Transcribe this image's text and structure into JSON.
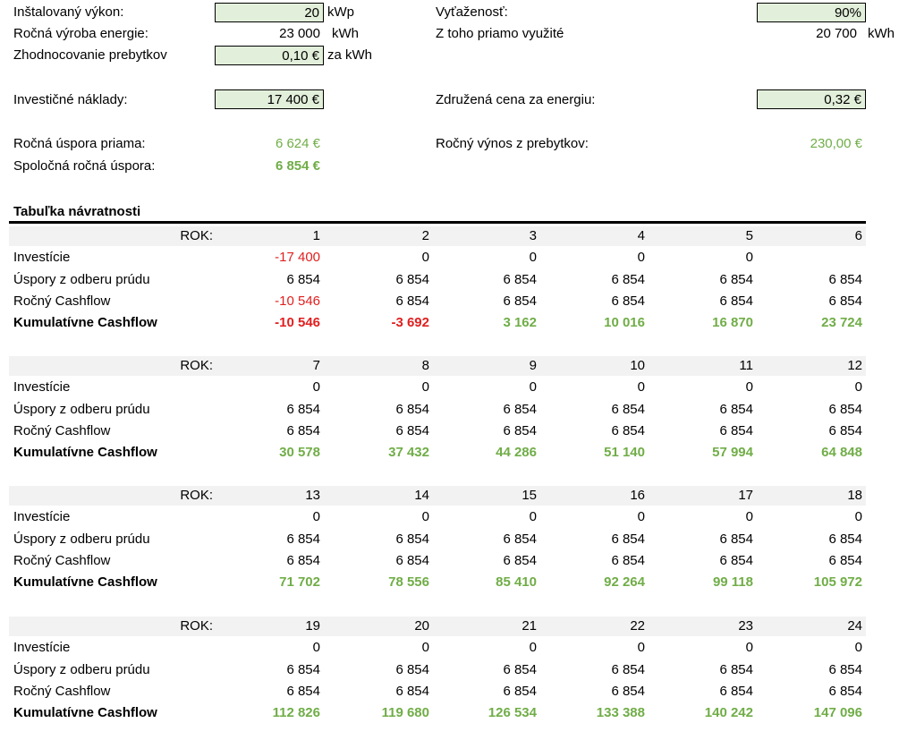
{
  "inputs": {
    "installed_power_label": "Inštalovaný výkon:",
    "installed_power_value": "20",
    "installed_power_unit": "kWp",
    "annual_production_label": "Ročná výroba energie:",
    "annual_production_value": "23 000",
    "annual_production_unit": "kWh",
    "surplus_valuation_label": "Zhodnocovanie prebytkov",
    "surplus_valuation_value": "0,10 €",
    "surplus_valuation_unit": "za kWh",
    "utilization_label": "Vyťaženosť:",
    "utilization_value": "90%",
    "direct_use_label": "Z toho priamo využité",
    "direct_use_value": "20 700",
    "direct_use_unit": "kWh",
    "investment_label": "Investičné náklady:",
    "investment_value": "17 400 €",
    "combined_price_label": "Združená cena za energiu:",
    "combined_price_value": "0,32 €",
    "direct_saving_label": "Ročná úspora priama:",
    "direct_saving_value": "6 624 €",
    "surplus_income_label": "Ročný výnos z prebytkov:",
    "surplus_income_value": "230,00 €",
    "total_saving_label": "Spoločná ročná úspora:",
    "total_saving_value": "6 854 €"
  },
  "table": {
    "title": "Tabuľka návratnosti",
    "rok_label": "ROK:",
    "row_labels": [
      "Investície",
      "Úspory z odberu prúdu",
      "Ročný Cashflow",
      "Kumulatívne Cashflow"
    ],
    "blocks": [
      {
        "years": [
          "1",
          "2",
          "3",
          "4",
          "5",
          "6"
        ],
        "investicie": [
          "-17 400",
          "0",
          "0",
          "0",
          "0",
          ""
        ],
        "uspory": [
          "6 854",
          "6 854",
          "6 854",
          "6 854",
          "6 854",
          "6 854"
        ],
        "cashflow": [
          "-10 546",
          "6 854",
          "6 854",
          "6 854",
          "6 854",
          "6 854"
        ],
        "kumulativne": [
          "-10 546",
          "-3 692",
          "3 162",
          "10 016",
          "16 870",
          "23 724"
        ]
      },
      {
        "years": [
          "7",
          "8",
          "9",
          "10",
          "11",
          "12"
        ],
        "investicie": [
          "0",
          "0",
          "0",
          "0",
          "0",
          "0"
        ],
        "uspory": [
          "6 854",
          "6 854",
          "6 854",
          "6 854",
          "6 854",
          "6 854"
        ],
        "cashflow": [
          "6 854",
          "6 854",
          "6 854",
          "6 854",
          "6 854",
          "6 854"
        ],
        "kumulativne": [
          "30 578",
          "37 432",
          "44 286",
          "51 140",
          "57 994",
          "64 848"
        ]
      },
      {
        "years": [
          "13",
          "14",
          "15",
          "16",
          "17",
          "18"
        ],
        "investicie": [
          "0",
          "0",
          "0",
          "0",
          "0",
          "0"
        ],
        "uspory": [
          "6 854",
          "6 854",
          "6 854",
          "6 854",
          "6 854",
          "6 854"
        ],
        "cashflow": [
          "6 854",
          "6 854",
          "6 854",
          "6 854",
          "6 854",
          "6 854"
        ],
        "kumulativne": [
          "71 702",
          "78 556",
          "85 410",
          "92 264",
          "99 118",
          "105 972"
        ]
      },
      {
        "years": [
          "19",
          "20",
          "21",
          "22",
          "23",
          "24"
        ],
        "investicie": [
          "0",
          "0",
          "0",
          "0",
          "0",
          "0"
        ],
        "uspory": [
          "6 854",
          "6 854",
          "6 854",
          "6 854",
          "6 854",
          "6 854"
        ],
        "cashflow": [
          "6 854",
          "6 854",
          "6 854",
          "6 854",
          "6 854",
          "6 854"
        ],
        "kumulativne": [
          "112 826",
          "119 680",
          "126 534",
          "133 388",
          "140 242",
          "147 096"
        ]
      }
    ]
  },
  "colors": {
    "positive": "#70ad47",
    "negative": "#e02020",
    "input_fill": "#e2efda"
  }
}
